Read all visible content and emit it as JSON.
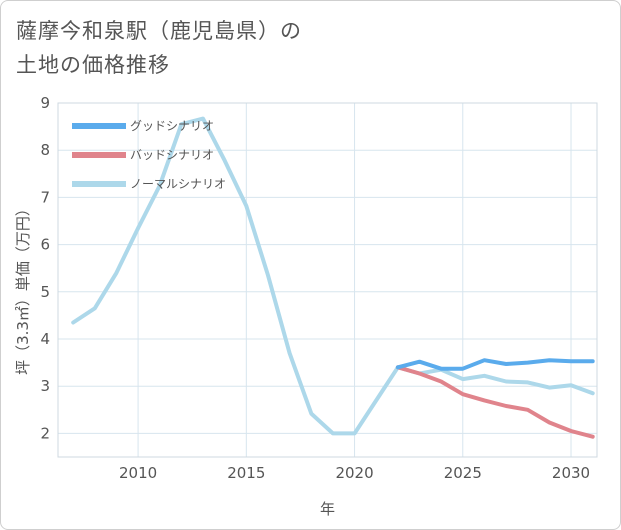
{
  "title_line1": "薩摩今和泉駅（鹿児島県）の",
  "title_line2": "土地の価格推移",
  "chart_data": {
    "type": "line",
    "title": "薩摩今和泉駅（鹿児島県）の土地の価格推移",
    "xlabel": "年",
    "ylabel": "坪（3.3㎡）単価（万円）",
    "xlim": [
      2006.3,
      2031.2
    ],
    "ylim": [
      1.5,
      9
    ],
    "xticks": [
      2010,
      2015,
      2020,
      2025,
      2030
    ],
    "yticks": [
      2,
      3,
      4,
      5,
      6,
      7,
      8,
      9
    ],
    "grid": true,
    "legend_position": "top-left",
    "series": [
      {
        "name": "グッドシナリオ",
        "color": "#5aabec",
        "x": [
          2022,
          2023,
          2024,
          2025,
          2026,
          2027,
          2028,
          2029,
          2030,
          2031
        ],
        "y": [
          3.4,
          3.52,
          3.37,
          3.37,
          3.55,
          3.47,
          3.5,
          3.55,
          3.53,
          3.53
        ]
      },
      {
        "name": "バッドシナリオ",
        "color": "#e0848c",
        "x": [
          2022,
          2023,
          2024,
          2025,
          2026,
          2027,
          2028,
          2029,
          2030,
          2031
        ],
        "y": [
          3.4,
          3.27,
          3.1,
          2.83,
          2.7,
          2.58,
          2.5,
          2.23,
          2.05,
          1.93
        ]
      },
      {
        "name": "ノーマルシナリオ",
        "color": "#add8ea",
        "x": [
          2007,
          2008,
          2009,
          2010,
          2011,
          2012,
          2013,
          2014,
          2015,
          2016,
          2017,
          2018,
          2019,
          2020,
          2021,
          2022,
          2023,
          2024,
          2025,
          2026,
          2027,
          2028,
          2029,
          2030,
          2031
        ],
        "y": [
          4.35,
          4.65,
          5.4,
          6.35,
          7.25,
          8.55,
          8.67,
          7.78,
          6.82,
          5.35,
          3.7,
          2.42,
          2.0,
          2.0,
          2.7,
          3.4,
          3.27,
          3.35,
          3.15,
          3.22,
          3.1,
          3.08,
          2.97,
          3.02,
          2.85
        ]
      }
    ]
  }
}
